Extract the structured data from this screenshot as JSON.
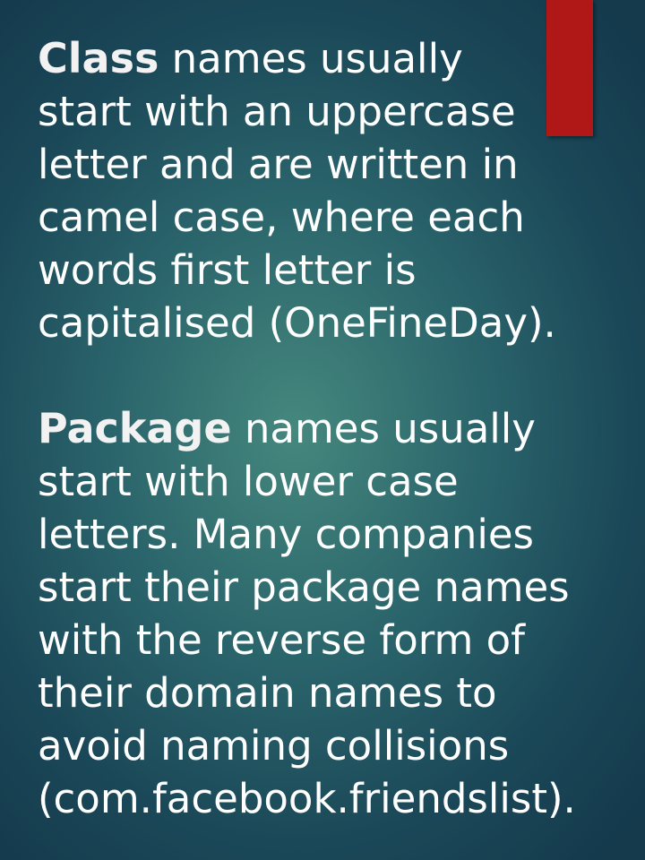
{
  "colors": {
    "accent_bar": "#b01818",
    "text": "#ffffff",
    "background_center": "#488c80",
    "background_edge": "#143a4c"
  },
  "paragraphs": [
    {
      "keyword": "Class",
      "lines": [
        " names usually",
        "start with an uppercase",
        "letter and are written in",
        "camel case, where each",
        "words first letter is",
        "capitalised (OneFineDay)."
      ]
    },
    {
      "keyword": "Package",
      "lines": [
        " names usually",
        "start with lower case",
        "letters. Many companies",
        "start their package names",
        "with the reverse form of",
        "their domain names to",
        "avoid naming collisions",
        "(com.facebook.friendslist)."
      ]
    }
  ]
}
